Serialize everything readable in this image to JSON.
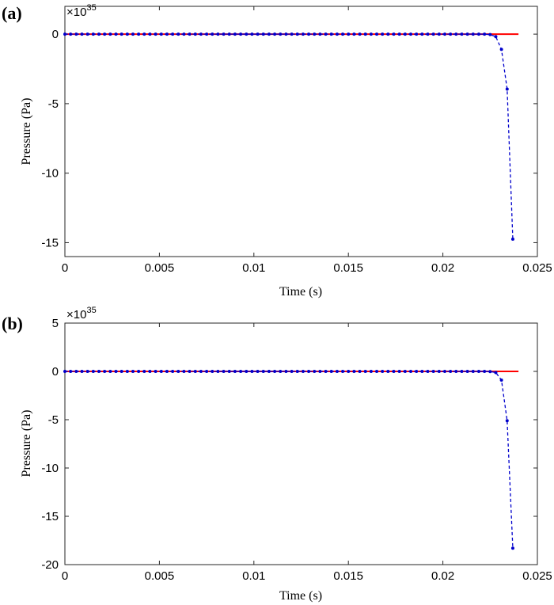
{
  "chart_data": [
    {
      "panel_label": "(a)",
      "type": "line",
      "xlabel": "Time (s)",
      "ylabel": "Pressure (Pa)",
      "exponent_text": "×10",
      "exponent_power": "35",
      "xlim": [
        0,
        0.025
      ],
      "ylim": [
        -16,
        2
      ],
      "xticks": [
        0,
        0.005,
        0.01,
        0.015,
        0.02,
        0.025
      ],
      "xtick_labels": [
        "0",
        "0.005",
        "0.01",
        "0.015",
        "0.02",
        "0.025"
      ],
      "yticks": [
        0,
        -5,
        -10,
        -15
      ],
      "ytick_labels": [
        "0",
        "-5",
        "-10",
        "-15"
      ],
      "grid": false,
      "series": [
        {
          "style": "solid",
          "color": "#ff0000",
          "x": [
            0,
            0.024
          ],
          "y": [
            0,
            0
          ]
        },
        {
          "style": "dashed-dots",
          "color": "#0000cc",
          "x_start": 0,
          "x_step": 0.0003,
          "y_tail": [
            -0.03,
            -0.18,
            -1.1,
            -3.95,
            -14.75
          ]
        }
      ]
    },
    {
      "panel_label": "(b)",
      "type": "line",
      "xlabel": "Time (s)",
      "ylabel": "Pressure (Pa)",
      "exponent_text": "×10",
      "exponent_power": "35",
      "xlim": [
        0,
        0.025
      ],
      "ylim": [
        -20,
        5
      ],
      "xticks": [
        0,
        0.005,
        0.01,
        0.015,
        0.02,
        0.025
      ],
      "xtick_labels": [
        "0",
        "0.005",
        "0.01",
        "0.015",
        "0.02",
        "0.025"
      ],
      "yticks": [
        5,
        0,
        -5,
        -10,
        -15,
        -20
      ],
      "ytick_labels": [
        "5",
        "0",
        "-5",
        "-10",
        "-15",
        "-20"
      ],
      "grid": false,
      "series": [
        {
          "style": "solid",
          "color": "#ff0000",
          "x": [
            0,
            0.024
          ],
          "y": [
            0,
            0
          ]
        },
        {
          "style": "dashed-dots",
          "color": "#0000cc",
          "x_start": 0,
          "x_step": 0.0003,
          "y_tail": [
            -0.02,
            -0.12,
            -0.9,
            -5.1,
            -18.3
          ]
        }
      ]
    }
  ]
}
